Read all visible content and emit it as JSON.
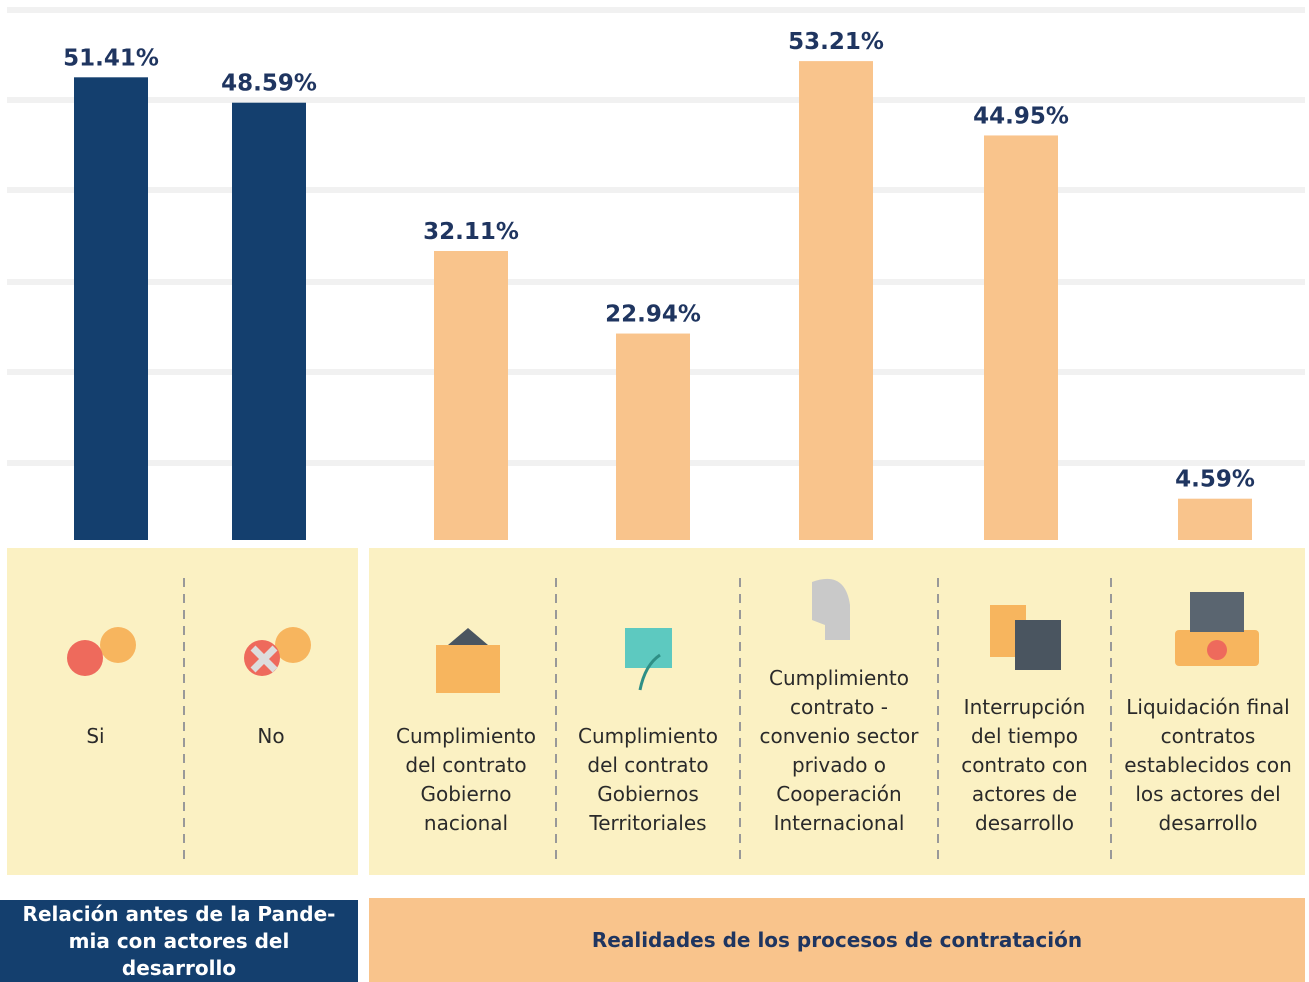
{
  "chart_data": [
    {
      "type": "bar",
      "title": "Relación antes de la Pande-mia con actores del desarrollo",
      "categories": [
        "Si",
        "No"
      ],
      "values": [
        51.41,
        48.59
      ],
      "value_labels": [
        "51.41%",
        "48.59%"
      ],
      "color": "#143f6e",
      "ylim": [
        0,
        60
      ]
    },
    {
      "type": "bar",
      "title": "Realidades de los procesos de contratación",
      "categories": [
        "Cumplimiento del contrato Gobierno nacional",
        "Cumplimiento del contrato Gobiernos Territoriales",
        "Cumplimiento contrato - convenio sector privado o Cooperación Internacional",
        "Interrupción del tiempo contrato con actores de desarrollo",
        "Liquidación final contratos establecidos con los actores del desarrollo"
      ],
      "values": [
        32.11,
        22.94,
        53.21,
        44.95,
        4.59
      ],
      "value_labels": [
        "32.11%",
        "22.94%",
        "53.21%",
        "44.95%",
        "4.59%"
      ],
      "color": "#f9c48c",
      "ylim": [
        0,
        60
      ]
    }
  ]
}
